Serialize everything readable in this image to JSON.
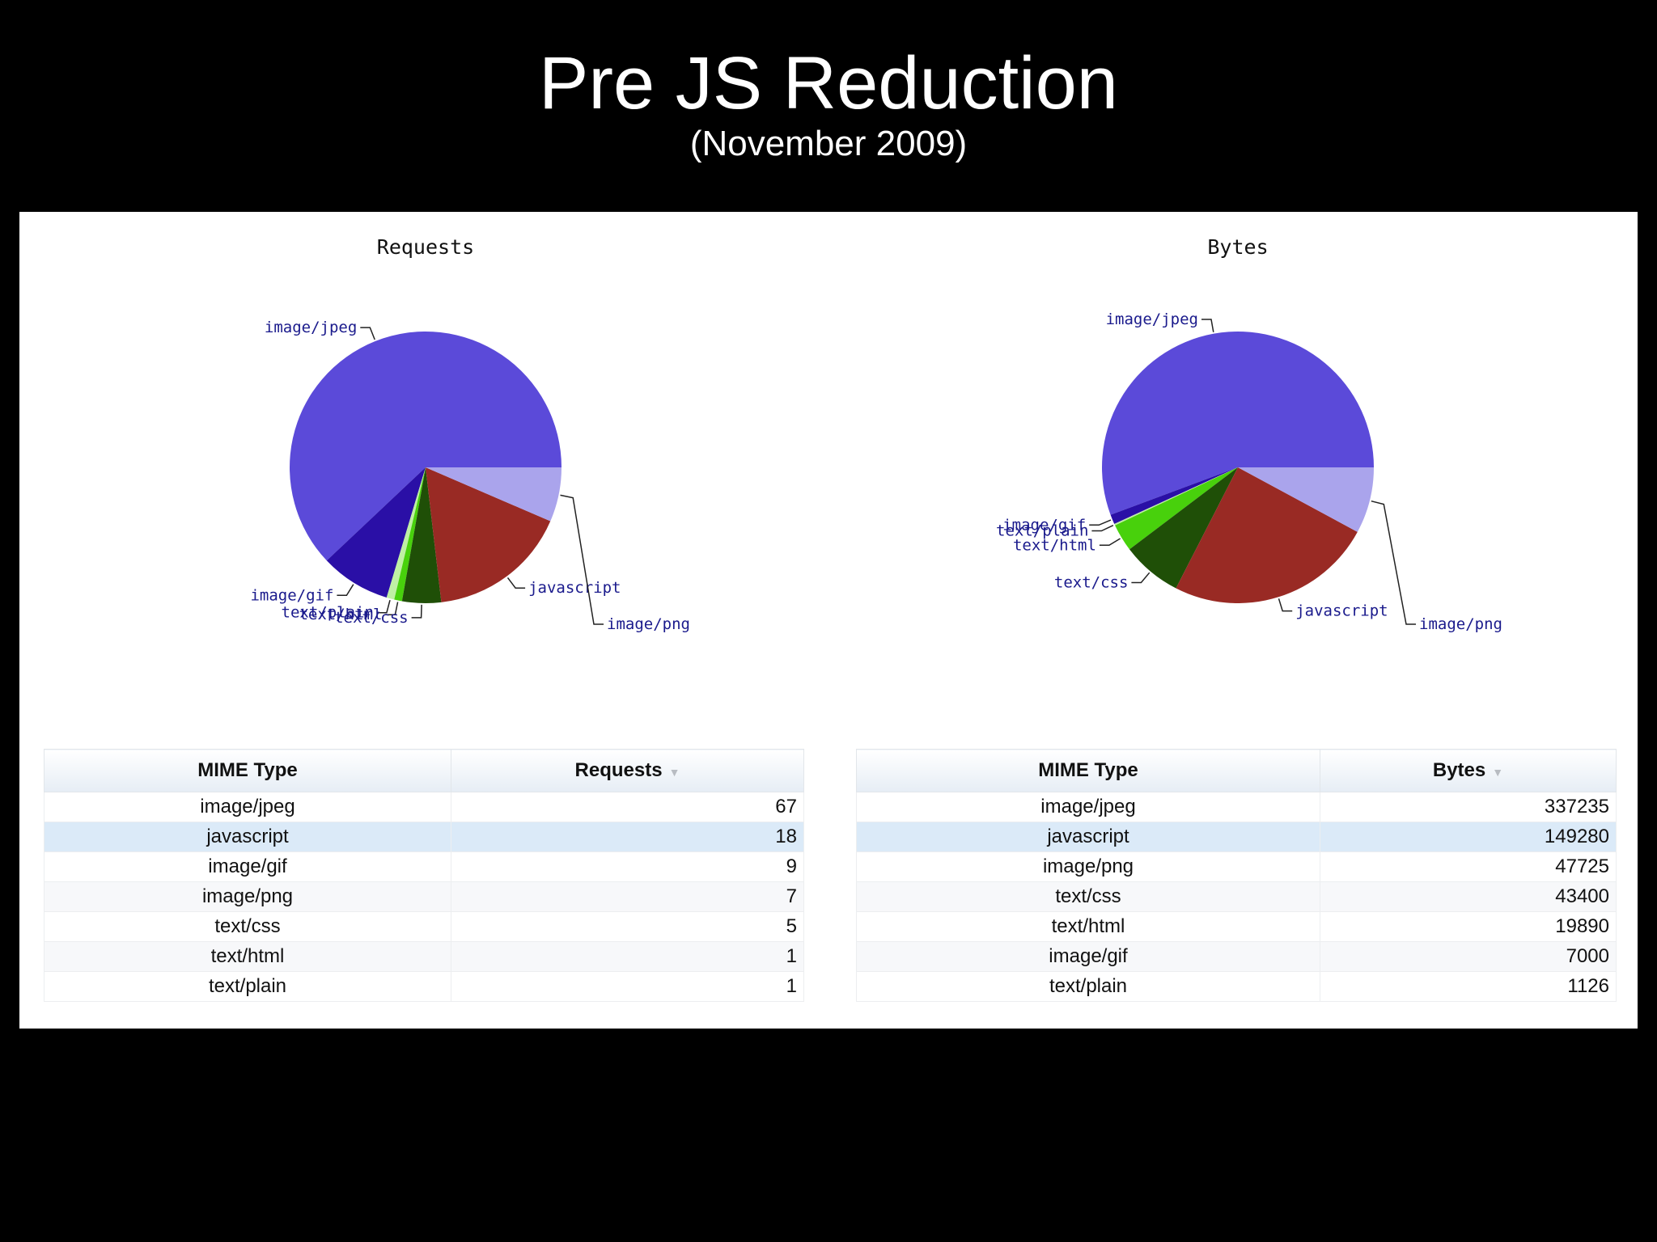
{
  "slide": {
    "title": "Pre JS Reduction",
    "subtitle": "(November 2009)"
  },
  "chart_data": [
    {
      "type": "pie",
      "title": "Requests",
      "labels": [
        "image/jpeg",
        "image/gif",
        "text/plain",
        "text/html",
        "text/css",
        "javascript",
        "image/png"
      ],
      "values": [
        67,
        9,
        1,
        1,
        5,
        18,
        7
      ],
      "colors": [
        "#5b4ad9",
        "#2a0fa6",
        "#bff0a4",
        "#48d10c",
        "#1f4f07",
        "#992a24",
        "#aaa4ec"
      ]
    },
    {
      "type": "pie",
      "title": "Bytes",
      "labels": [
        "image/jpeg",
        "image/gif",
        "text/plain",
        "text/html",
        "text/css",
        "javascript",
        "image/png"
      ],
      "values": [
        337235,
        7000,
        1126,
        19890,
        43400,
        149280,
        47725
      ],
      "colors": [
        "#5b4ad9",
        "#2a0fa6",
        "#bff0a4",
        "#48d10c",
        "#1f4f07",
        "#992a24",
        "#aaa4ec"
      ]
    },
    {
      "type": "table",
      "columns": [
        "MIME Type",
        "Requests"
      ],
      "sort_indicator": "▼",
      "rows": [
        [
          "image/jpeg",
          "67"
        ],
        [
          "javascript",
          "18"
        ],
        [
          "image/gif",
          "9"
        ],
        [
          "image/png",
          "7"
        ],
        [
          "text/css",
          "5"
        ],
        [
          "text/html",
          "1"
        ],
        [
          "text/plain",
          "1"
        ]
      ],
      "selected_row": 1
    },
    {
      "type": "table",
      "columns": [
        "MIME Type",
        "Bytes"
      ],
      "sort_indicator": "▼",
      "rows": [
        [
          "image/jpeg",
          "337235"
        ],
        [
          "javascript",
          "149280"
        ],
        [
          "image/png",
          "47725"
        ],
        [
          "text/css",
          "43400"
        ],
        [
          "text/html",
          "19890"
        ],
        [
          "image/gif",
          "7000"
        ],
        [
          "text/plain",
          "1126"
        ]
      ],
      "selected_row": 1
    }
  ]
}
